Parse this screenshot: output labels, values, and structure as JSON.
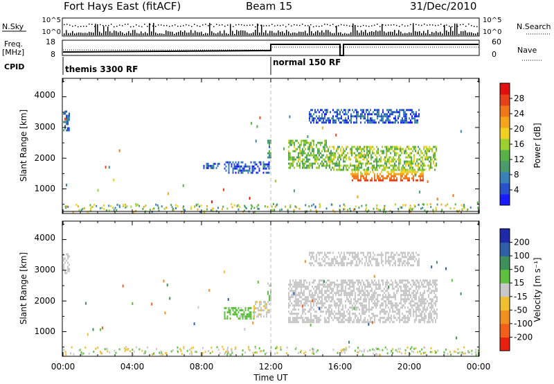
{
  "header": {
    "station": "Fort Hays East (fitACF)",
    "beam": "Beam 15",
    "date": "31/Dec/2010"
  },
  "top_panels": {
    "nsky_label": "N.Sky",
    "nsearch_label": "N.Search",
    "noise_ticks_left": [
      "10^5",
      "10^0"
    ],
    "noise_ticks_right": [
      "10^5",
      "10^0"
    ],
    "freq_label": "Freq.",
    "freq_unit": "[MHz]",
    "freq_ticks": [
      "18",
      "8"
    ],
    "nave_label": "Nave",
    "nave_ticks": [
      "60",
      "0"
    ],
    "cpid_label": "CPID",
    "cpid_segments": [
      {
        "label": "themis 3300 RF",
        "start_hour": 0
      },
      {
        "label": "normal 150 RF",
        "start_hour": 12
      }
    ]
  },
  "time_axis": {
    "title": "Time UT",
    "tick_labels": [
      "00:00",
      "04:00",
      "08:00",
      "12:00",
      "16:00",
      "20:00",
      "00:00"
    ],
    "tick_hours": [
      0,
      4,
      8,
      12,
      16,
      20,
      24
    ]
  },
  "power_panel": {
    "ylabel": "Slant Range [km]",
    "y_ticks": [
      "1000",
      "2000",
      "3000",
      "4000"
    ],
    "colorbar_label": "Power [dB]",
    "colorbar_ticks": [
      "4",
      "8",
      "12",
      "16",
      "20",
      "24",
      "28"
    ],
    "colorbar_colors": [
      "#1a1aff",
      "#2850c8",
      "#3a7fb5",
      "#4a9a6e",
      "#58b048",
      "#9ccf30",
      "#f0d020",
      "#f6a51a",
      "#f07818",
      "#e84018",
      "#e01010"
    ]
  },
  "velocity_panel": {
    "ylabel": "Slant Range [km]",
    "y_ticks": [
      "1000",
      "2000",
      "3000",
      "4000"
    ],
    "colorbar_label": "Velocity [m s⁻¹]",
    "colorbar_ticks": [
      "200",
      "100",
      "50",
      "15",
      "-15",
      "-50",
      "-100",
      "-200"
    ],
    "colorbar_colors": [
      "#1e2aa8",
      "#2f5fa8",
      "#3f8f5a",
      "#5fc040",
      "#c8c8c8",
      "#f0c030",
      "#f09020",
      "#f06018",
      "#e82010"
    ]
  },
  "chart_data": [
    {
      "type": "heatmap",
      "name": "power",
      "xlabel": "Time UT",
      "ylabel": "Slant Range [km]",
      "xlim": [
        0,
        24
      ],
      "ylim": [
        200,
        4600
      ],
      "colorbar": {
        "label": "Power [dB]",
        "range": [
          0,
          30
        ],
        "ticks": [
          4,
          8,
          12,
          16,
          20,
          24,
          28
        ]
      },
      "regions": [
        {
          "t": [
            0.0,
            0.4
          ],
          "r": [
            2900,
            3550
          ],
          "value": 6
        },
        {
          "t": [
            9.3,
            11.9
          ],
          "r": [
            1500,
            1900
          ],
          "value": 5
        },
        {
          "t": [
            8.1,
            9.0
          ],
          "r": [
            1650,
            1850
          ],
          "value": 6
        },
        {
          "t": [
            11.8,
            12.0
          ],
          "r": [
            2000,
            2600
          ],
          "value": 9
        },
        {
          "t": [
            13.0,
            15.2
          ],
          "r": [
            1700,
            2600
          ],
          "value": 13
        },
        {
          "t": [
            15.2,
            21.6
          ],
          "r": [
            1600,
            2400
          ],
          "value": 14
        },
        {
          "t": [
            16.6,
            20.8
          ],
          "r": [
            1250,
            1650
          ],
          "value": 22
        },
        {
          "t": [
            14.2,
            20.6
          ],
          "r": [
            3150,
            3600
          ],
          "value": 5
        }
      ]
    },
    {
      "type": "heatmap",
      "name": "velocity",
      "xlabel": "Time UT",
      "ylabel": "Slant Range [km]",
      "xlim": [
        0,
        24
      ],
      "ylim": [
        200,
        4600
      ],
      "colorbar": {
        "label": "Velocity [m s⁻¹]",
        "range": [
          -250,
          250
        ],
        "ticks": [
          200,
          100,
          50,
          15,
          -15,
          -50,
          -100,
          -200
        ]
      },
      "regions": [
        {
          "t": [
            0.0,
            0.4
          ],
          "r": [
            2900,
            3550
          ],
          "value": 0
        },
        {
          "t": [
            9.3,
            11.0
          ],
          "r": [
            1400,
            1800
          ],
          "value": 40
        },
        {
          "t": [
            11.0,
            11.9
          ],
          "r": [
            1500,
            2000
          ],
          "value": -20
        },
        {
          "t": [
            11.8,
            12.0
          ],
          "r": [
            2000,
            2600
          ],
          "value": 30
        },
        {
          "t": [
            13.0,
            21.6
          ],
          "r": [
            1300,
            2700
          ],
          "value": 0
        },
        {
          "t": [
            14.2,
            20.6
          ],
          "r": [
            3150,
            3600
          ],
          "value": 0
        }
      ]
    }
  ]
}
